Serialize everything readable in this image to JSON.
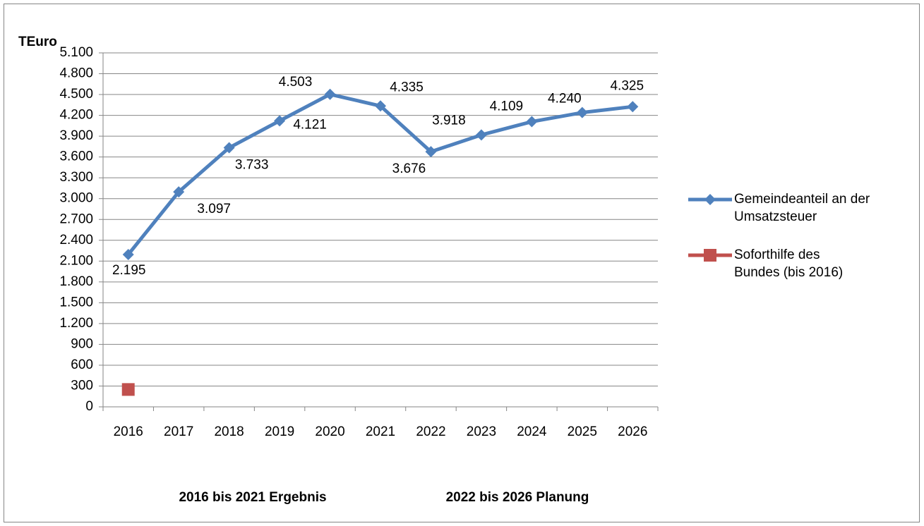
{
  "chart_data": {
    "type": "line",
    "y_label": "TEuro",
    "annotations": [
      "2016 bis 2021 Ergebnis",
      "2022 bis 2026 Planung"
    ],
    "categories": [
      "2016",
      "2017",
      "2018",
      "2019",
      "2020",
      "2021",
      "2022",
      "2023",
      "2024",
      "2025",
      "2026"
    ],
    "series": [
      {
        "name": "Gemeindeanteil an der Umsatzsteuer",
        "color": "#4f81bd",
        "marker": "diamond",
        "values": [
          2195,
          3097,
          3733,
          4121,
          4503,
          4335,
          3676,
          3918,
          4109,
          4240,
          4325
        ],
        "value_labels": [
          "2.195",
          "3.097",
          "3.733",
          "4.121",
          "4.503",
          "4.335",
          "3.676",
          "3.918",
          "4.109",
          "4.240",
          "4.325"
        ]
      },
      {
        "name": "Soforthilfe des Bundes (bis 2016)",
        "color": "#c0504d",
        "marker": "square",
        "values": [
          250,
          null,
          null,
          null,
          null,
          null,
          null,
          null,
          null,
          null,
          null
        ]
      }
    ],
    "ylim": [
      0,
      5100
    ],
    "yticks": [
      0,
      300,
      600,
      900,
      {
        "value": 1200,
        "label": "1.200"
      },
      {
        "value": 1500,
        "label": "1.500"
      },
      {
        "value": 1800,
        "label": "1.800"
      },
      {
        "value": 2100,
        "label": "2.100"
      },
      {
        "value": 2400,
        "label": "2.400"
      },
      {
        "value": 2700,
        "label": "2.700"
      },
      {
        "value": 3000,
        "label": "3.000"
      },
      {
        "value": 3300,
        "label": "3.300"
      },
      {
        "value": 3600,
        "label": "3.600"
      },
      {
        "value": 3900,
        "label": "3.900"
      },
      {
        "value": 4200,
        "label": "4.200"
      },
      {
        "value": 4500,
        "label": "4.500"
      },
      {
        "value": 4800,
        "label": "4.800"
      },
      {
        "value": 5100,
        "label": "5.100"
      }
    ],
    "grid": true,
    "legend": "right"
  }
}
